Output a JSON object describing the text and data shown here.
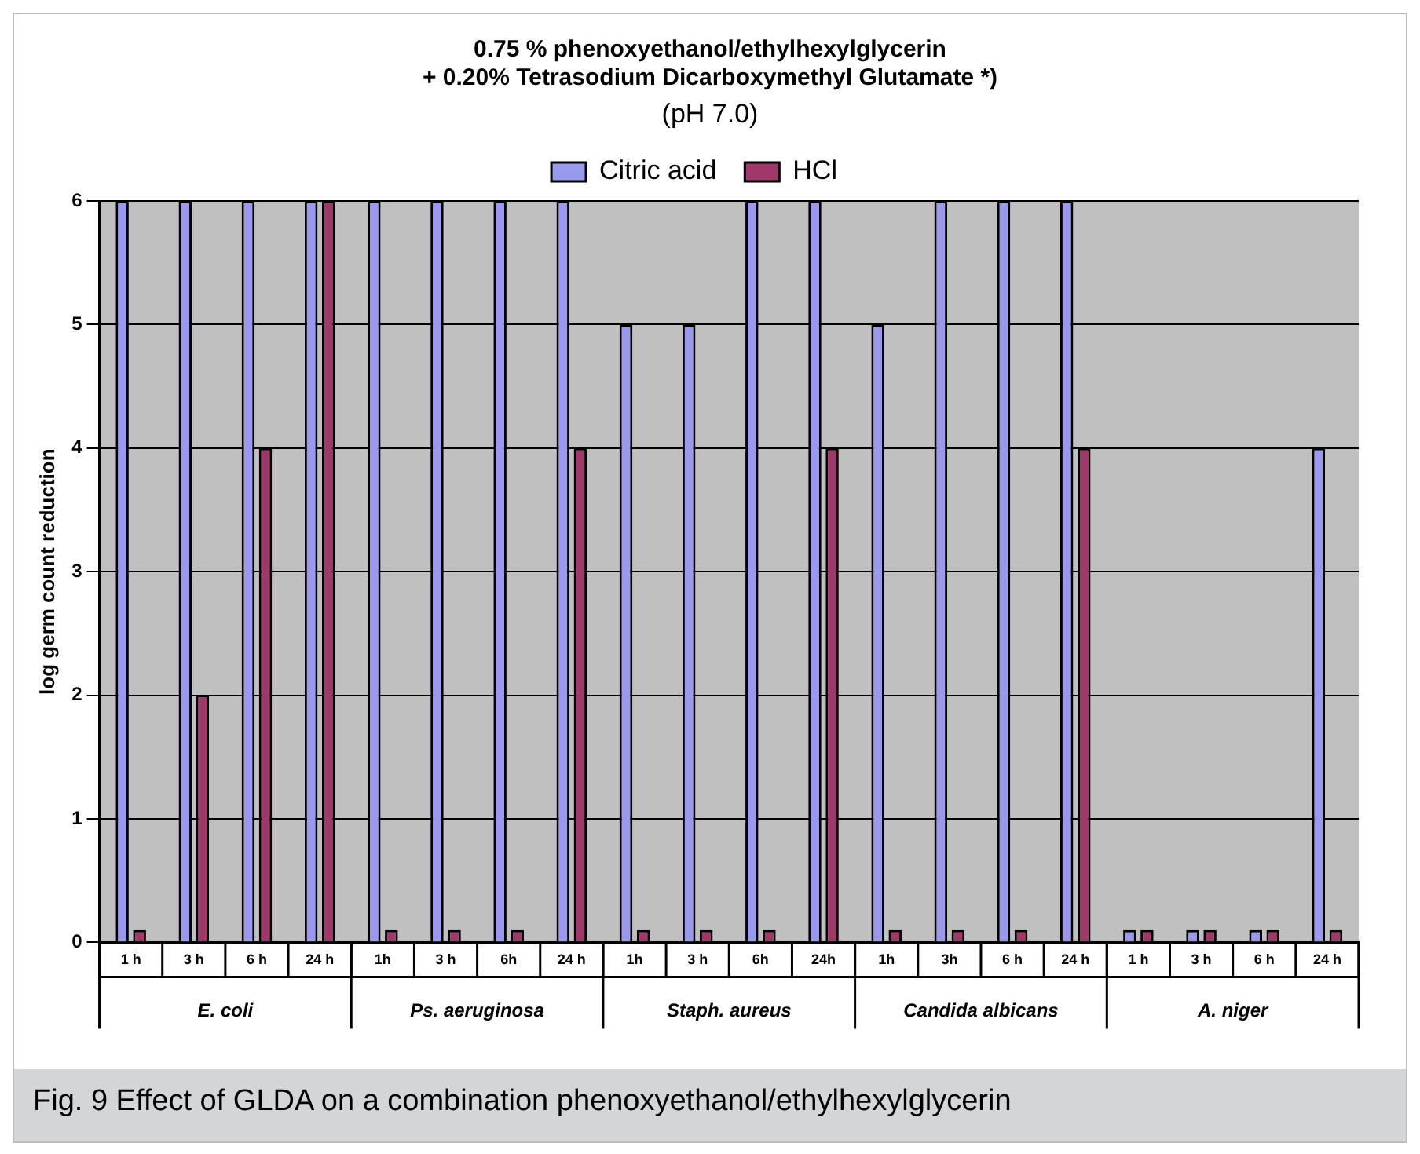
{
  "chart_data": {
    "type": "bar",
    "title": "0.75 % phenoxyethanol/ethylhexylglycerin\n+ 0.20% Tetrasodium Dicarboxymethyl Glutamate *)",
    "subtitle": "(pH 7.0)",
    "ylabel": "log germ count reduction",
    "categories": [
      "1 h",
      "3 h",
      "6 h",
      "24 h",
      "1h",
      "3 h",
      "6h",
      "24 h",
      "1h",
      "3 h",
      "6h",
      "24h",
      "1h",
      "3h",
      "6 h",
      "24 h",
      "1 h",
      "3 h",
      "6 h",
      "24 h"
    ],
    "series": [
      {
        "name": "Citric acid",
        "color": "#9999ee",
        "values": [
          6,
          6,
          6,
          6,
          6,
          6,
          6,
          6,
          5,
          5,
          6,
          6,
          5,
          6,
          6,
          6,
          0.1,
          0.1,
          0.1,
          4
        ]
      },
      {
        "name": "HCl",
        "color": "#a0386a",
        "values": [
          0.1,
          2,
          4,
          6,
          0.1,
          0.1,
          0.1,
          4,
          0.1,
          0.1,
          0.1,
          4,
          0.1,
          0.1,
          0.1,
          4,
          0.1,
          0.1,
          0.1,
          0.1
        ]
      }
    ],
    "ylim": [
      0,
      6
    ],
    "yticks": [
      0,
      1,
      2,
      3,
      4,
      5,
      6
    ],
    "grid": "y",
    "legend": "top",
    "annotations": [
      "E. coli",
      "Ps. aeruginosa",
      "Staph. aureus",
      "Candida albicans",
      "A. niger",
      "Fig. 9 Effect of GLDA on a combination phenoxyethanol/ethylhexylglycerin"
    ]
  }
}
